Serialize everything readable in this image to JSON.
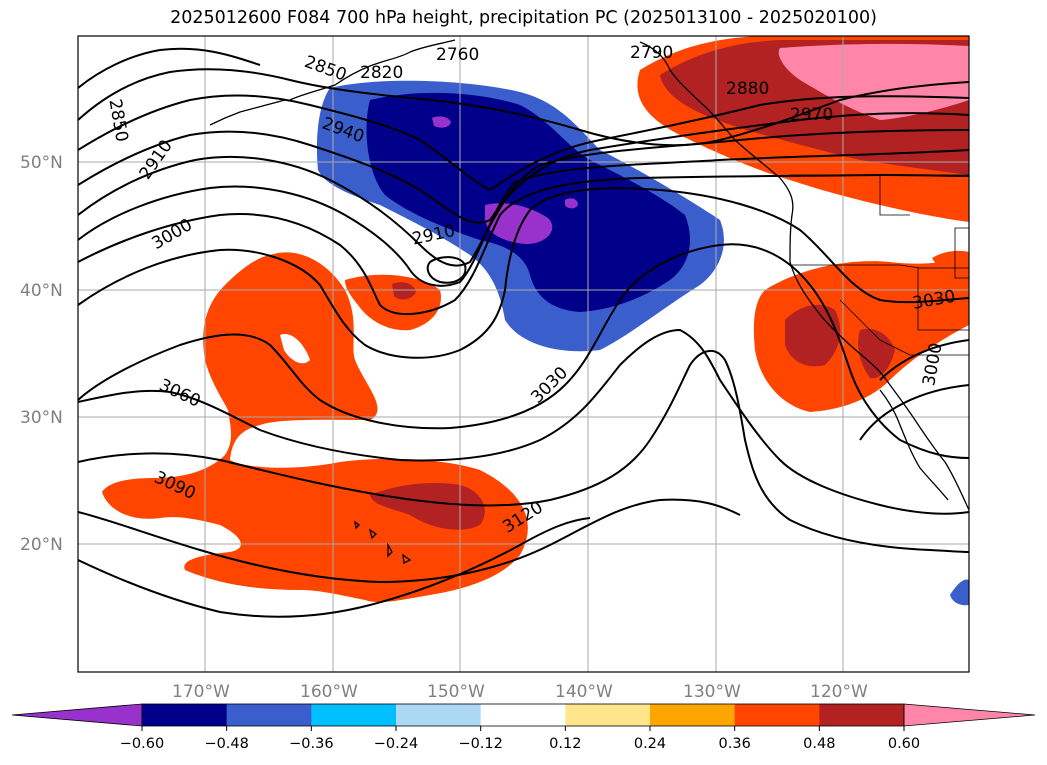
{
  "title": "2025012600 F084 700 hPa height, precipitation PC (2025013100 - 2025020100)",
  "lat_labels": [
    "50°N",
    "40°N",
    "30°N",
    "20°N"
  ],
  "lon_labels": [
    "170°W",
    "160°W",
    "150°W",
    "140°W",
    "130°W",
    "120°W"
  ],
  "contour_labels": [
    "2850",
    "2910",
    "3000",
    "2850",
    "2820",
    "2760",
    "2940",
    "2910",
    "3060",
    "3090",
    "3030",
    "3120",
    "2790",
    "2880",
    "2970",
    "3030",
    "3000"
  ],
  "colorbar": {
    "ticks": [
      "−0.60",
      "−0.48",
      "−0.36",
      "−0.24",
      "−0.12",
      "0.12",
      "0.24",
      "0.36",
      "0.48",
      "0.60"
    ],
    "colors": [
      "#9932cc",
      "#00008b",
      "#3a5fcd",
      "#00bfff",
      "#add8f5",
      "#ffffff",
      "#ffe68a",
      "#ffa500",
      "#ff4500",
      "#b22222",
      "#ff86a8"
    ]
  },
  "legend_levels": [
    -0.6,
    -0.48,
    -0.36,
    -0.24,
    -0.12,
    0.12,
    0.24,
    0.36,
    0.48,
    0.6
  ]
}
